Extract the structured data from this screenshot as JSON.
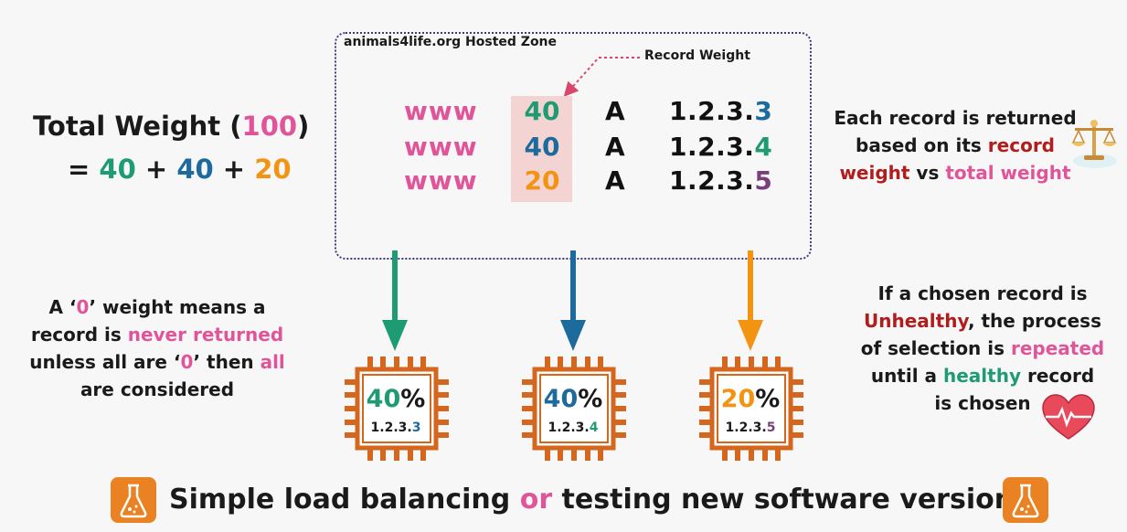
{
  "zone": {
    "title": "animals4life.org Hosted Zone",
    "record_weight_label": "Record Weight",
    "records": [
      {
        "name": "www",
        "weight": "40",
        "type": "A",
        "ip_prefix": "1.2.3.",
        "ip_last": "3"
      },
      {
        "name": "www",
        "weight": "40",
        "type": "A",
        "ip_prefix": "1.2.3.",
        "ip_last": "4"
      },
      {
        "name": "www",
        "weight": "20",
        "type": "A",
        "ip_prefix": "1.2.3.",
        "ip_last": "5"
      }
    ]
  },
  "total": {
    "label": "Total Weight (",
    "value": "100",
    "close": ")",
    "eq": "=",
    "a": "40",
    "plus1": "+",
    "b": "40",
    "plus2": "+",
    "c": "20"
  },
  "right_note": {
    "l1": "Each record is returned",
    "l2a": "based on its ",
    "l2b": "record",
    "l3a": "weight",
    "l3b": " vs ",
    "l3c": "total weight"
  },
  "left_note": {
    "l1a": "A ‘",
    "l1b": "0",
    "l1c": "’ weight means a",
    "l2a": "record is ",
    "l2b": "never returned",
    "l3a": "unless all are ‘",
    "l3b": "0",
    "l3c": "’ then ",
    "l3d": "all",
    "l4": "are considered"
  },
  "unhealthy_note": {
    "l1": "If a chosen record is",
    "l2a": "Unhealthy",
    "l2b": ", the process",
    "l3a": "of selection is ",
    "l3b": "repeated",
    "l4a": "until a ",
    "l4b": "healthy",
    "l4c": " record",
    "l5": "is chosen"
  },
  "chips": [
    {
      "pct": "40",
      "sign": "%",
      "ip_prefix": "1.2.3.",
      "ip_last": "3"
    },
    {
      "pct": "40",
      "sign": "%",
      "ip_prefix": "1.2.3.",
      "ip_last": "4"
    },
    {
      "pct": "20",
      "sign": "%",
      "ip_prefix": "1.2.3.",
      "ip_last": "5"
    }
  ],
  "footer": {
    "a": "Simple load balancing ",
    "b": "or",
    "c": " testing new software versions"
  },
  "icons": [
    "scales-icon",
    "heart-monitor-icon",
    "flask-icon"
  ],
  "colors": {
    "green": "#1f9b73",
    "blue": "#1c6b9c",
    "orange": "#f39312",
    "pink": "#e0559a",
    "red": "#b11d1d",
    "chip": "#d4661e"
  }
}
